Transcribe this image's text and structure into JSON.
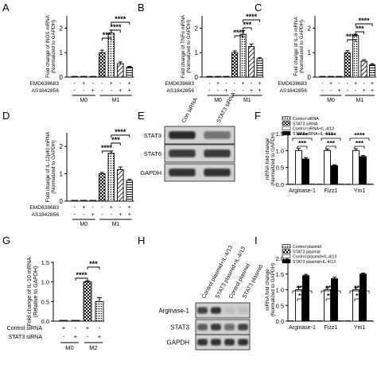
{
  "panels": [
    {
      "id": "A",
      "label": "A"
    },
    {
      "id": "B",
      "label": "B"
    },
    {
      "id": "C",
      "label": "C"
    },
    {
      "id": "D",
      "label": "D"
    },
    {
      "id": "E",
      "label": "E"
    },
    {
      "id": "F",
      "label": "F"
    },
    {
      "id": "G",
      "label": "G"
    },
    {
      "id": "H",
      "label": "H"
    },
    {
      "id": "I",
      "label": "I"
    }
  ],
  "colors": {
    "ink": "#000000",
    "gray": "#bdbdbd",
    "white": "#ffffff",
    "blot": "#2a2a2a"
  },
  "treatment_labels": {
    "emd": "EMD638683",
    "as": "AS1842856",
    "m0": "M0",
    "m1": "M1",
    "m2": "M2",
    "control_sirna": "Control siRNA",
    "stat3_sirna": "STAT3 siRNA"
  },
  "blots": {
    "E": {
      "lanes": [
        "Con siRNA",
        "STAT3 siRNA"
      ],
      "rows": [
        {
          "label": "STAT3",
          "intensity": [
            1.0,
            0.55
          ]
        },
        {
          "label": "STAT6",
          "intensity": [
            0.9,
            0.9
          ]
        },
        {
          "label": "GAPDH",
          "intensity": [
            0.95,
            0.95
          ]
        }
      ]
    },
    "H": {
      "lanes": [
        "Control plasmid+IL-4/13",
        "STAT3 plasmid+IL-4/13",
        "Control plasmid",
        "STAT3 plasmid"
      ],
      "rows": [
        {
          "label": "Arginase-1",
          "intensity": [
            0.85,
            0.95,
            0.1,
            0.1
          ]
        },
        {
          "label": "STAT3",
          "intensity": [
            0.7,
            0.9,
            0.6,
            0.85
          ]
        },
        {
          "label": "GAPDH",
          "intensity": [
            0.95,
            0.95,
            0.95,
            0.95
          ]
        }
      ]
    }
  },
  "chart_data": [
    {
      "panel": "A",
      "type": "bar",
      "ylabel": "Fold change of iNOS mRNA (Normalized to GAPDH)",
      "ylim": [
        0,
        2.5
      ],
      "yticks": [
        "0",
        "1",
        "2"
      ],
      "values": [
        0.03,
        0.03,
        0.03,
        1.0,
        1.8,
        0.55,
        0.4
      ],
      "errors": [
        0,
        0,
        0,
        0.1,
        0.12,
        0.07,
        0.04
      ],
      "fills": [
        "white",
        "white",
        "white",
        "checker",
        "dots",
        "hatch",
        "lines"
      ],
      "emd": [
        "-",
        "+",
        "-",
        "-",
        "+",
        "-",
        "+"
      ],
      "as": [
        "-",
        "-",
        "+",
        "-",
        "-",
        "+",
        "+"
      ],
      "groups": [
        {
          "label": "M0",
          "from": 0,
          "to": 2
        },
        {
          "label": "M1",
          "from": 3,
          "to": 6
        }
      ],
      "sig": [
        {
          "from": 3,
          "to": 4,
          "text": "***",
          "level": 0
        },
        {
          "from": 4,
          "to": 5,
          "text": "****",
          "level": 1
        },
        {
          "from": 4,
          "to": 6,
          "text": "****",
          "level": 2
        }
      ]
    },
    {
      "panel": "B",
      "type": "bar",
      "ylabel": "Fold change of TNFα mRNA (Normalized to GAPDH)",
      "ylim": [
        0,
        2.5
      ],
      "yticks": [
        "0",
        "1",
        "2"
      ],
      "values": [
        0.03,
        0.03,
        0.03,
        1.0,
        1.75,
        1.25,
        0.75
      ],
      "errors": [
        0,
        0,
        0,
        0.07,
        0.15,
        0.1,
        0.05
      ],
      "fills": [
        "white",
        "white",
        "white",
        "checker",
        "dots",
        "hatch",
        "lines"
      ],
      "emd": [
        "-",
        "+",
        "-",
        "-",
        "+",
        "-",
        "+"
      ],
      "as": [
        "-",
        "-",
        "+",
        "-",
        "-",
        "+",
        "+"
      ],
      "groups": [
        {
          "label": "M0",
          "from": 0,
          "to": 2
        },
        {
          "label": "M1",
          "from": 3,
          "to": 6
        }
      ],
      "sig": [
        {
          "from": 3,
          "to": 4,
          "text": "****",
          "level": 0
        },
        {
          "from": 4,
          "to": 5,
          "text": "***",
          "level": 1
        },
        {
          "from": 4,
          "to": 6,
          "text": "****",
          "level": 2
        }
      ]
    },
    {
      "panel": "C",
      "type": "bar",
      "ylabel": "Fold change of IL-6 mRNA (Normalized to GAPDH)",
      "ylim": [
        0,
        2.5
      ],
      "yticks": [
        "0",
        "1",
        "2"
      ],
      "values": [
        0.03,
        0.03,
        0.03,
        1.0,
        1.7,
        0.65,
        0.5
      ],
      "errors": [
        0,
        0,
        0,
        0.08,
        0.05,
        0.06,
        0.05
      ],
      "fills": [
        "white",
        "white",
        "white",
        "checker",
        "dots",
        "hatch",
        "lines"
      ],
      "emd": [
        "-",
        "+",
        "-",
        "-",
        "+",
        "-",
        "+"
      ],
      "as": [
        "-",
        "-",
        "+",
        "-",
        "-",
        "+",
        "+"
      ],
      "groups": [
        {
          "label": "M0",
          "from": 0,
          "to": 2
        },
        {
          "label": "M1",
          "from": 3,
          "to": 6
        }
      ],
      "sig": [
        {
          "from": 3,
          "to": 4,
          "text": "****",
          "level": 0
        },
        {
          "from": 4,
          "to": 5,
          "text": "***",
          "level": 1
        },
        {
          "from": 4,
          "to": 6,
          "text": "****",
          "level": 2
        }
      ]
    },
    {
      "panel": "D",
      "type": "bar",
      "ylabel": "Fold change of IL-12p40 mRNA (Normalized to GAPDH)",
      "ylim": [
        0,
        2.5
      ],
      "yticks": [
        "0",
        "1",
        "2"
      ],
      "values": [
        0.03,
        0.03,
        0.03,
        1.0,
        1.75,
        1.15,
        0.75
      ],
      "errors": [
        0,
        0,
        0,
        0.05,
        0.08,
        0.1,
        0.05
      ],
      "fills": [
        "white",
        "white",
        "white",
        "checker",
        "dots",
        "hatch",
        "lines"
      ],
      "emd": [
        "-",
        "+",
        "-",
        "-",
        "+",
        "-",
        "+"
      ],
      "as": [
        "-",
        "-",
        "+",
        "-",
        "-",
        "+",
        "+"
      ],
      "groups": [
        {
          "label": "M0",
          "from": 0,
          "to": 2
        },
        {
          "label": "M1",
          "from": 3,
          "to": 6
        }
      ],
      "sig": [
        {
          "from": 3,
          "to": 4,
          "text": "****",
          "level": 0
        },
        {
          "from": 4,
          "to": 5,
          "text": "***",
          "level": 1
        },
        {
          "from": 4,
          "to": 6,
          "text": "****",
          "level": 2
        }
      ]
    },
    {
      "panel": "F",
      "type": "bar",
      "ylabel": "mRNA fold change (Normalized to GAPDH)",
      "ylim": [
        0,
        1.5
      ],
      "yticks": [
        "0.0",
        "0.5",
        "1.0",
        "1.5"
      ],
      "categories": [
        "Arginase-1",
        "Fizz1",
        "Ym1"
      ],
      "legend": [
        "Control siRNA",
        "STAT3 siRNA",
        "Control siRNA+IL-4/13",
        "STAT3 siRNA+IL-4/13"
      ],
      "series": [
        {
          "name": "Control siRNA",
          "values": [
            0.0,
            0.0,
            0.0
          ],
          "fill": "dots"
        },
        {
          "name": "STAT3 siRNA",
          "values": [
            0.0,
            0.0,
            0.0
          ],
          "fill": "checker"
        },
        {
          "name": "Control siRNA+IL-4/13",
          "values": [
            1.0,
            1.0,
            1.0
          ],
          "errors": [
            0.06,
            0.04,
            0.05
          ],
          "fill": "white"
        },
        {
          "name": "STAT3 siRNA+IL-4/13",
          "values": [
            0.75,
            0.55,
            0.82
          ],
          "errors": [
            0.04,
            0.03,
            0.03
          ],
          "fill": "black"
        }
      ],
      "sig": [
        {
          "category": 0,
          "text": "****",
          "level": 1
        },
        {
          "category": 0,
          "text": "***",
          "level": 0
        },
        {
          "category": 1,
          "text": "****",
          "level": 1
        },
        {
          "category": 1,
          "text": "***",
          "level": 0
        },
        {
          "category": 2,
          "text": "****",
          "level": 1
        },
        {
          "category": 2,
          "text": "***",
          "level": 0
        }
      ]
    },
    {
      "panel": "G",
      "type": "bar",
      "ylabel": "Fold change of IL-10 mRNA (Relative to GAPDH)",
      "ylim": [
        0,
        1.5
      ],
      "yticks": [
        "0.0",
        "0.5",
        "1.0",
        "1.5"
      ],
      "values": [
        0.02,
        0.02,
        1.0,
        0.5
      ],
      "errors": [
        0,
        0,
        0.03,
        0.1
      ],
      "fills": [
        "white",
        "white",
        "checker",
        "dots"
      ],
      "control": [
        "+",
        "-",
        "+",
        "-"
      ],
      "stat3": [
        "-",
        "+",
        "-",
        "+"
      ],
      "groups": [
        {
          "label": "M0",
          "from": 0,
          "to": 1
        },
        {
          "label": "M2",
          "from": 2,
          "to": 3
        }
      ],
      "sig": [
        {
          "from": 1,
          "to": 2,
          "text": "****",
          "level": 0
        },
        {
          "from": 2,
          "to": 3,
          "text": "***",
          "level": 1
        }
      ]
    },
    {
      "panel": "I",
      "type": "bar",
      "ylabel": "mRNA fold change (Normalized to GAPDH)",
      "ylim": [
        0,
        2.0
      ],
      "yticks": [
        "0.0",
        "0.5",
        "1.0",
        "1.5",
        "2.0"
      ],
      "categories": [
        "Arginase-1",
        "Fizz1",
        "Ym1"
      ],
      "legend": [
        "Control plasmid",
        "STAT3 plasmid",
        "Control plasmid+IL-4/13",
        "STAT3 plasmid+IL-4/13"
      ],
      "series": [
        {
          "name": "Control plasmid",
          "values": [
            0.0,
            0.0,
            0.0
          ],
          "fill": "dots"
        },
        {
          "name": "STAT3 plasmid",
          "values": [
            0.0,
            0.0,
            0.0
          ],
          "fill": "checker"
        },
        {
          "name": "Control plasmid+IL-4/13",
          "values": [
            1.0,
            1.0,
            1.0
          ],
          "errors": [
            0.08,
            0.06,
            0.06
          ],
          "fill": "white"
        },
        {
          "name": "STAT3 plasmid+IL-4/13",
          "values": [
            1.45,
            1.35,
            1.5
          ],
          "errors": [
            0.04,
            0.05,
            0.03
          ],
          "fill": "black"
        }
      ],
      "sig": [
        {
          "category": 0,
          "text": "****",
          "level": 1
        },
        {
          "category": 0,
          "text": "***",
          "level": 0
        },
        {
          "category": 1,
          "text": "****",
          "level": 1
        },
        {
          "category": 1,
          "text": "***",
          "level": 0
        },
        {
          "category": 2,
          "text": "****",
          "level": 1
        },
        {
          "category": 2,
          "text": "***",
          "level": 0
        }
      ]
    }
  ]
}
